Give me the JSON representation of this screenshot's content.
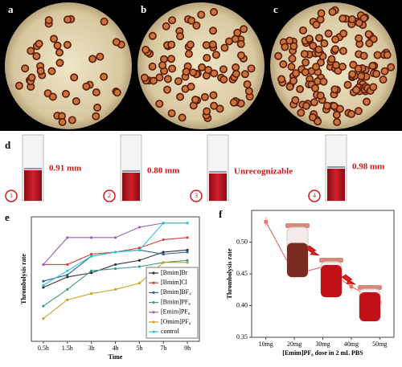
{
  "figure_labels": [
    "a",
    "b",
    "c",
    "d",
    "e",
    "f"
  ],
  "tube_numbers": [
    "1",
    "2",
    "3",
    "4"
  ],
  "tube_measurements": [
    "0.91 mm",
    "0.80 mm",
    "Unrecognizable",
    "0.98 mm"
  ],
  "chart_data": [
    {
      "type": "line",
      "y_label": "Thrombolysis rate",
      "x_label": "Time",
      "categories": [
        "0.5h",
        "1.5h",
        "3h",
        "4h",
        "5h",
        "7h",
        "9h"
      ],
      "ylim": [
        0.0,
        0.6
      ],
      "series": [
        {
          "name": "[Bmim]Br",
          "color": "#333333",
          "values": [
            0.26,
            0.31,
            0.33,
            0.37,
            0.39,
            0.43,
            0.44
          ]
        },
        {
          "name": "[Bmim]Cl",
          "color": "#d0403c",
          "values": [
            0.37,
            0.37,
            0.42,
            0.43,
            0.45,
            0.49,
            0.5
          ]
        },
        {
          "name": "[Bmim]BF₄",
          "color": "#2e5f9e",
          "values": [
            0.29,
            0.32,
            0.41,
            0.43,
            0.44,
            0.42,
            0.43
          ]
        },
        {
          "name": "[Bmim]PF₆",
          "color": "#3a9a8a",
          "values": [
            0.17,
            0.25,
            0.34,
            0.35,
            0.36,
            0.38,
            0.39
          ]
        },
        {
          "name": "[Emim]PF₆",
          "color": "#9b5fc0",
          "values": [
            0.37,
            0.5,
            0.5,
            0.5,
            0.55,
            0.57,
            0.57
          ]
        },
        {
          "name": "[Omim]PF₆",
          "color": "#c9a227",
          "values": [
            0.11,
            0.2,
            0.23,
            0.25,
            0.28,
            0.38,
            0.38
          ]
        },
        {
          "name": "control",
          "color": "#2ec4d6",
          "values": [
            0.27,
            0.34,
            0.41,
            0.43,
            0.44,
            0.57,
            0.57
          ]
        }
      ]
    },
    {
      "type": "errorline",
      "y_label": "Thrombolysis rate",
      "x_label": "[Emim]PF₆ dose in 2 mL PBS",
      "categories": [
        "10mg",
        "20mg",
        "30mg",
        "40mg",
        "50mg"
      ],
      "values": [
        0.532,
        0.449,
        0.461,
        0.43,
        0.405
      ],
      "errors": [
        0.008,
        0.007,
        0.006,
        0.007,
        0.006
      ],
      "color": "#e8706a",
      "ylim": [
        0.35,
        0.55
      ],
      "yticks": [
        0.35,
        {
          "value": 0.4,
          "label": "0.40"
        },
        0.45,
        {
          "value": 0.5,
          "label": "0.50"
        }
      ]
    }
  ]
}
